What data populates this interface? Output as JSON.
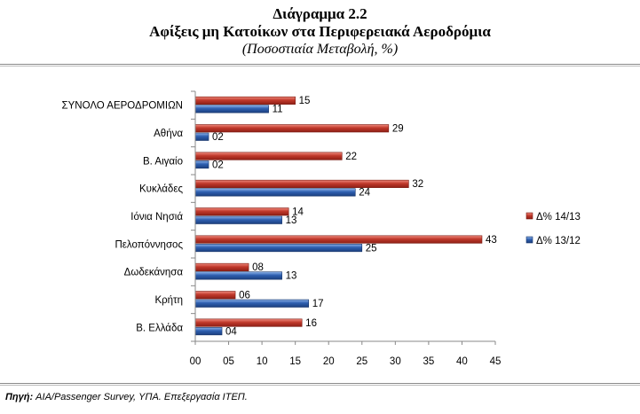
{
  "title": "Διάγραμμα 2.2",
  "subtitle": "Αφίξεις μη Κατοίκων στα Περιφερειακά Αεροδρόμια",
  "unit_note": "(Ποσοστιαία Μεταβολή, %)",
  "source_label": "Πηγή:",
  "source_text": " AIA/Passenger  Survey, ΥΠΑ. Επεξεργασία  ΙΤΕΠ.",
  "colors": {
    "red": "#c0392b",
    "blue": "#2e5fb0"
  },
  "chart_data": {
    "type": "bar",
    "orientation": "horizontal",
    "categories": [
      "ΣΥΝΟΛΟ ΑΕΡΟΔΡΟΜΙΩΝ",
      "Αθήνα",
      "Β. Αιγαίο",
      "Κυκλάδες",
      "Ιόνια Νησιά",
      "Πελοπόννησος",
      "Δωδεκάνησα",
      "Κρήτη",
      "Β. Ελλάδα"
    ],
    "series": [
      {
        "name": "Δ% 14/13",
        "color": "#c0392b",
        "values": [
          15,
          29,
          22,
          32,
          14,
          43,
          8,
          6,
          16
        ],
        "labels": [
          "15",
          "29",
          "22",
          "32",
          "14",
          "43",
          "08",
          "06",
          "16"
        ]
      },
      {
        "name": "Δ% 13/12",
        "color": "#2e5fb0",
        "values": [
          11,
          2,
          2,
          24,
          13,
          25,
          13,
          17,
          4
        ],
        "labels": [
          "11",
          "02",
          "02",
          "24",
          "13",
          "25",
          "13",
          "17",
          "04"
        ]
      }
    ],
    "xlim": [
      0,
      45
    ],
    "xticks": [
      "00",
      "05",
      "10",
      "15",
      "20",
      "25",
      "30",
      "35",
      "40",
      "45"
    ],
    "legend_position": "right",
    "grid": false
  }
}
